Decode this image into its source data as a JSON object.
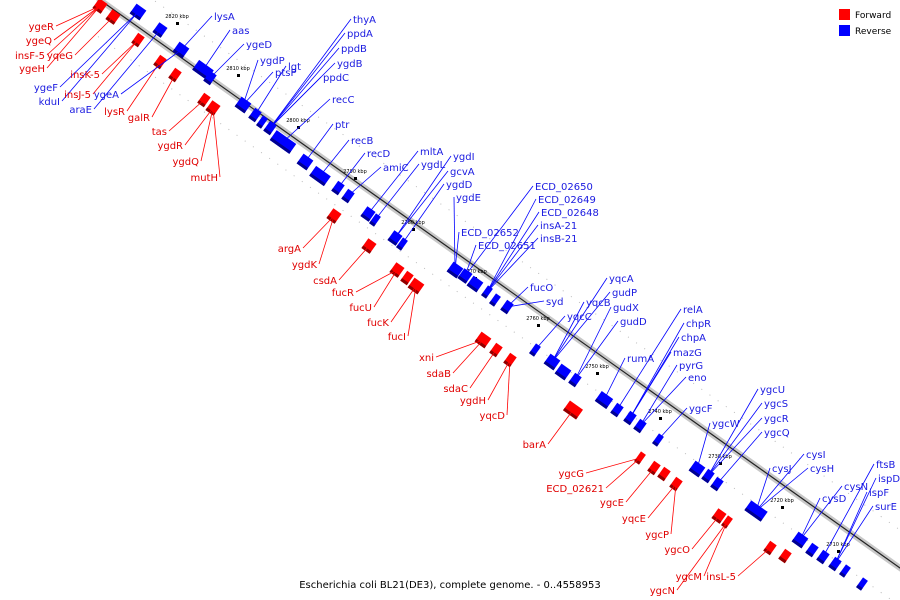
{
  "legend": {
    "forward_label": "Forward",
    "reverse_label": "Reverse",
    "forward_color": "#ff0000",
    "reverse_color": "#0000ff"
  },
  "caption": "Escherichia coli BL21(DE3), complete genome. - 0..4558953",
  "kbp_ticks": [
    "2820 kbp",
    "2810 kbp",
    "2800 kbp",
    "2790 kbp",
    "2780 kbp",
    "2770 kbp",
    "2760 kbp",
    "2750 kbp",
    "2740 kbp",
    "2730 kbp",
    "2720 kbp",
    "2710 kbp"
  ],
  "forward_labels": [
    "ygeR",
    "ygeQ",
    "yqeG",
    "insF-5",
    "ygeH",
    "insK-5",
    "insJ-5",
    "lysR",
    "galR",
    "tas",
    "ygdR",
    "ygdQ",
    "mutH",
    "argA",
    "ygdK",
    "csdA",
    "fucR",
    "fucU",
    "fucK",
    "fucI",
    "xni",
    "sdaB",
    "sdaC",
    "ygdH",
    "yqcD",
    "barA",
    "ygcG",
    "ECD_02621",
    "ygcE",
    "yqcE",
    "ygcP",
    "ygcO",
    "ygcM",
    "insL-5",
    "ygcN"
  ],
  "reverse_labels": [
    "lysA",
    "aas",
    "ygeD",
    "ygeF",
    "kduI",
    "ygeA",
    "araE",
    "ygdP",
    "ptsP",
    "lgt",
    "thyA",
    "ppdA",
    "ppdB",
    "ygdB",
    "ppdC",
    "recC",
    "ptr",
    "recB",
    "recD",
    "amiC",
    "mltA",
    "ygdL",
    "ygdI",
    "gcvA",
    "ygdD",
    "ygdE",
    "ECD_02650",
    "ECD_02649",
    "ECD_02648",
    "insA-21",
    "insB-21",
    "ECD_02652",
    "ECD_02651",
    "fucO",
    "syd",
    "yqcC",
    "yqcA",
    "gudP",
    "yqcB",
    "gudX",
    "gudD",
    "rumA",
    "relA",
    "chpR",
    "chpA",
    "mazG",
    "pyrG",
    "eno",
    "ygcF",
    "ygcW",
    "ygcU",
    "ygcS",
    "ygcR",
    "ygcQ",
    "cysI",
    "cysJ",
    "cysH",
    "cysD",
    "cysN",
    "ftsB",
    "ispD",
    "ispF",
    "surE"
  ]
}
